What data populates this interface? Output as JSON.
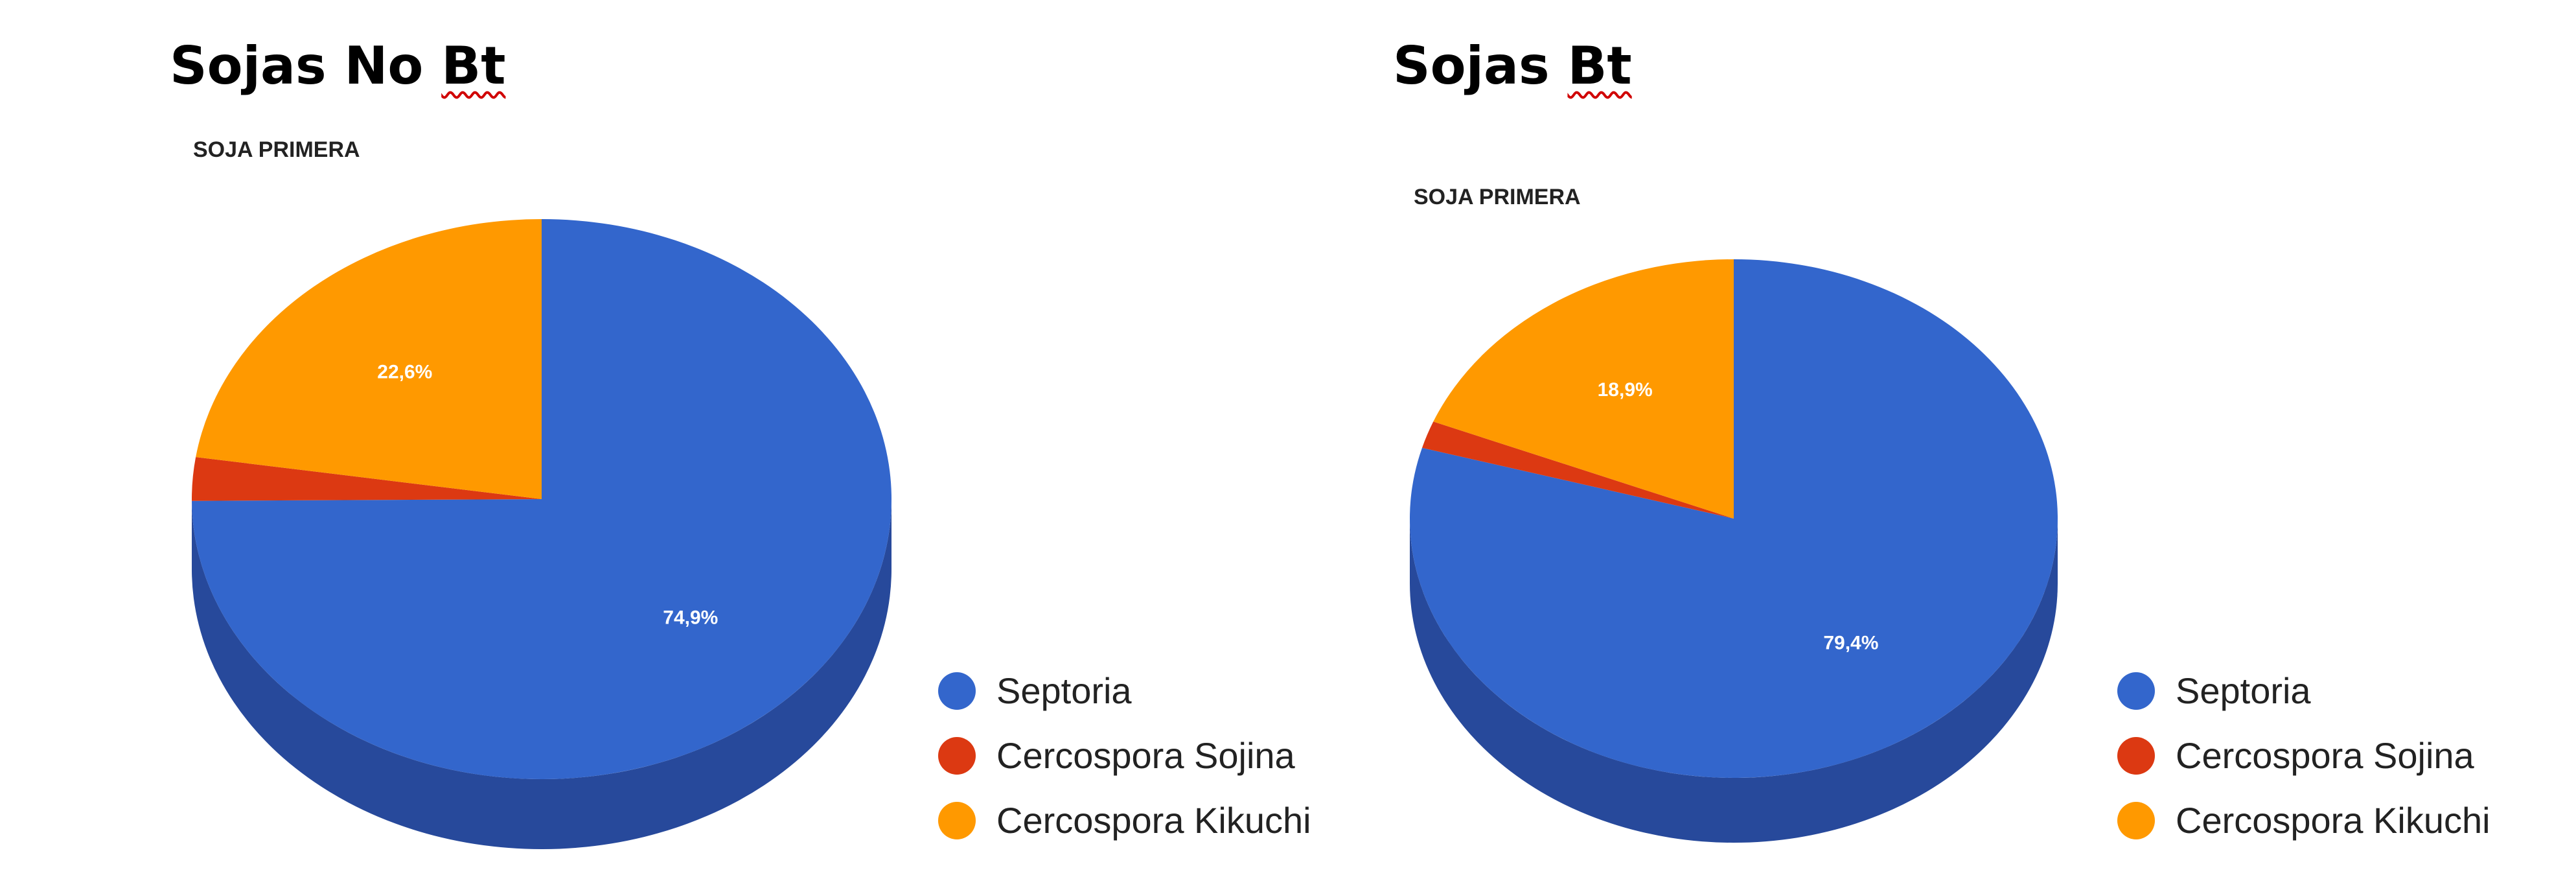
{
  "colors": {
    "septoria": "#3366cc",
    "septoria_side": "#27499b",
    "sojina": "#dc3912",
    "sojina_side": "#a12a0d",
    "kikuchi": "#ff9900",
    "kikuchi_side": "#bb7000"
  },
  "charts": [
    {
      "heading_pre": "Sojas No ",
      "heading_emph": "Bt",
      "subtitle": "SOJA PRIMERA",
      "legend": [
        "Septoria",
        "Cercospora Sojina",
        "Cercospora Kikuchi"
      ],
      "labels": [
        "74,9%",
        "",
        "22,6%"
      ]
    },
    {
      "heading_pre": "Sojas ",
      "heading_emph": "Bt",
      "subtitle": "SOJA PRIMERA",
      "legend": [
        "Septoria",
        "Cercospora Sojina",
        "Cercospora Kikuchi"
      ],
      "labels": [
        "79,4%",
        "",
        "18,9%"
      ]
    }
  ],
  "chart_data": [
    {
      "type": "pie",
      "title": "SOJA PRIMERA",
      "categories": [
        "Septoria",
        "Cercospora Sojina",
        "Cercospora Kikuchi"
      ],
      "values": [
        74.9,
        2.5,
        22.6
      ],
      "data_labels": [
        "74,9%",
        "",
        "22,6%"
      ],
      "legend": "right-bottom",
      "style": "3d"
    },
    {
      "type": "pie",
      "title": "SOJA PRIMERA",
      "categories": [
        "Septoria",
        "Cercospora Sojina",
        "Cercospora Kikuchi"
      ],
      "values": [
        79.4,
        1.7,
        18.9
      ],
      "data_labels": [
        "79,4%",
        "",
        "18,9%"
      ],
      "legend": "right-bottom",
      "style": "3d"
    }
  ]
}
